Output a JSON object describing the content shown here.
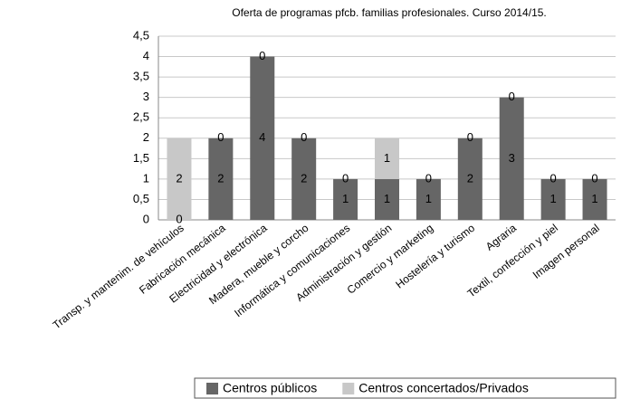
{
  "chart_data": {
    "type": "stacked_bar",
    "title": "Oferta de programas pfcb. familias profesionales. Curso 2014/15.",
    "categories": [
      "Transp. y mantenim. de vehículos",
      "Fabricación mecánica",
      "Electricidad y electrónica",
      "Madera, mueble y corcho",
      "Informática y comunicaciones",
      "Administración y gestión",
      "Comercio y marketing",
      "Hostelería y turismo",
      "Agraria",
      "Textil, confección y piel",
      "Imagen personal"
    ],
    "series": [
      {
        "name": "Centros públicos",
        "color": "#666666",
        "values": [
          0,
          2,
          4,
          2,
          1,
          1,
          1,
          2,
          3,
          1,
          1
        ]
      },
      {
        "name": "Centros concertados/Privados",
        "color": "#c8c8c8",
        "values": [
          2,
          0,
          0,
          0,
          0,
          1,
          0,
          0,
          0,
          0,
          0
        ]
      }
    ],
    "ylim": [
      0,
      4.5
    ],
    "yticks": [
      0,
      {
        "value": 0.5,
        "label": "0,5"
      },
      1,
      {
        "value": 1.5,
        "label": "1,5"
      },
      2,
      {
        "value": 2.5,
        "label": "2,5"
      },
      3,
      {
        "value": 3.5,
        "label": "3,5"
      },
      4,
      {
        "value": 4.5,
        "label": "4,5"
      }
    ],
    "grid": true,
    "legend": "bottom"
  }
}
